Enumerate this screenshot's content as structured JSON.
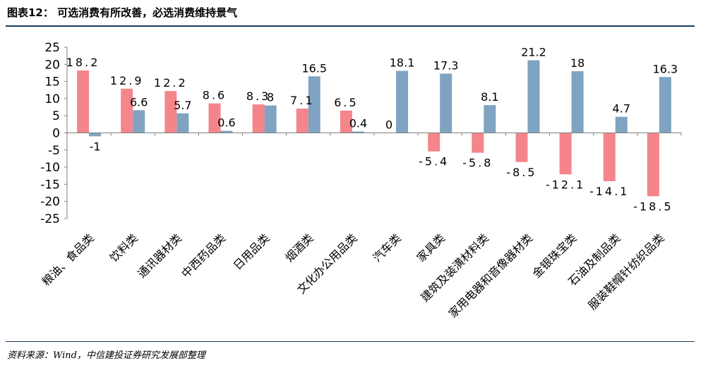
{
  "header": {
    "title": "图表12：  可选消费有所改善，必选消费维持景气"
  },
  "footer": {
    "source": "资料来源：Wind，中信建投证券研究发展部整理"
  },
  "colors": {
    "series1": "#f4858a",
    "series2": "#7fa3c1",
    "rule": "#1a3a5c",
    "axis": "#7f7f7f"
  },
  "chart_data": {
    "type": "bar",
    "title": "",
    "xlabel": "",
    "ylabel": "",
    "ylim": [
      -25,
      25
    ],
    "yticks": [
      25,
      20,
      15,
      10,
      5,
      0,
      -5,
      -10,
      -15,
      -20,
      -25
    ],
    "grid": false,
    "legend": "none",
    "categories": [
      "粮油、食品类",
      "饮料类",
      "通讯器材类",
      "中西药品类",
      "日用品类",
      "烟酒类",
      "文化办公用品类",
      "汽车类",
      "家具类",
      "建筑及装潢材料类",
      "家用电器和音像器材类",
      "金银珠宝类",
      "石油及制品类",
      "服装鞋帽针纺织品类"
    ],
    "series": [
      {
        "values": [
          18.2,
          12.9,
          12.2,
          8.6,
          8.3,
          7.1,
          6.5,
          0,
          -5.4,
          -5.8,
          -8.5,
          -12.1,
          -14.1,
          -18.5
        ],
        "labels": [
          "18.2",
          "12.9",
          "12.2",
          "8.6",
          "8.3",
          "7.1",
          "6.5",
          "0",
          "-5.4",
          "-5.8",
          "-8.5",
          "-12.1",
          "-14.1",
          "-18.5"
        ]
      },
      {
        "values": [
          -1,
          6.6,
          5.7,
          0.6,
          8,
          16.5,
          0.4,
          18.1,
          17.3,
          8.1,
          21.2,
          18,
          4.7,
          16.3
        ],
        "labels": [
          "-1",
          "6.6",
          "5.7",
          "0.6",
          "8",
          "16.5",
          "0.4",
          "18.1",
          "17.3",
          "8.1",
          "21.2",
          "18",
          "4.7",
          "16.3"
        ]
      }
    ]
  }
}
